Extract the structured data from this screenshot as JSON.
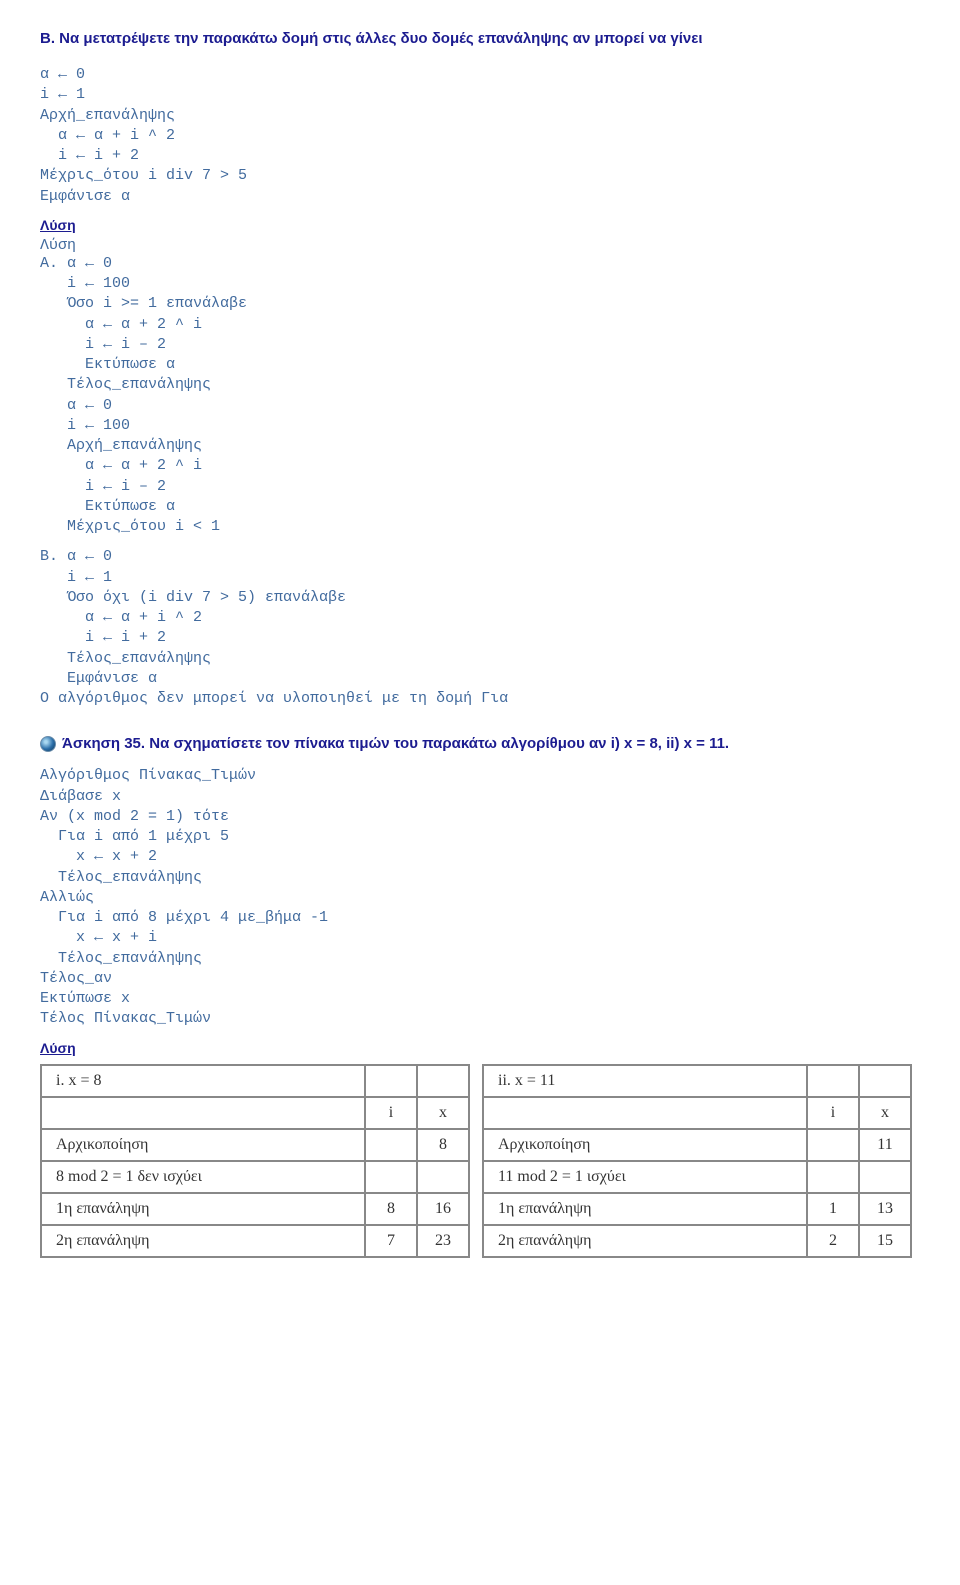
{
  "sectionB": {
    "title": "Β. Να μετατρέψετε την παρακάτω δομή στις άλλες δυο δομές επανάληψης αν μπορεί να γίνει",
    "code1": "α ← 0\ni ← 1\nΑρχή_επανάληψης\n  α ← α + i ^ 2\n  i ← i + 2\nΜέχρις_ότου i div 7 > 5\nΕμφάνισε α",
    "solution_label": "Λύση",
    "solution_inline": "Λύση",
    "codeA": "Α. α ← 0\n   i ← 100\n   Όσο i >= 1 επανάλαβε\n     α ← α + 2 ^ i\n     i ← i – 2\n     Εκτύπωσε α\n   Τέλος_επανάληψης\n   α ← 0\n   i ← 100\n   Αρχή_επανάληψης\n     α ← α + 2 ^ i\n     i ← i – 2\n     Εκτύπωσε α\n   Μέχρις_ότου i < 1",
    "codeB": "Β. α ← 0\n   i ← 1\n   Όσο όχι (i div 7 > 5) επανάλαβε\n     α ← α + i ^ 2\n     i ← i + 2\n   Τέλος_επανάληψης\n   Εμφάνισε α\nΟ αλγόριθμος δεν μπορεί να υλοποιηθεί με τη δομή Για"
  },
  "ex35": {
    "title": "Άσκηση 35. Να σχηματίσετε τον πίνακα τιμών του παρακάτω αλγορίθμου αν i) x = 8, ii) x = 11.",
    "code": "Αλγόριθμος Πίνακας_Τιμών\nΔιάβασε x\nΑν (x mod 2 = 1) τότε\n  Για i από 1 μέχρι 5\n    x ← x + 2\n  Τέλος_επανάληψης\nΑλλιώς\n  Για i από 8 μέχρι 4 με_βήμα -1\n    x ← x + i\n  Τέλος_επανάληψης\nΤέλος_αν\nΕκτύπωσε x\nΤέλος Πίνακας_Τιμών",
    "solution_label": "Λύση"
  },
  "tables": {
    "left": {
      "title": "i.   x = 8",
      "h_i": "i",
      "h_x": "x",
      "rows": [
        {
          "label": "Αρχικοποίηση",
          "i": "",
          "x": "8"
        },
        {
          "label": "8 mod 2 = 1 δεν ισχύει",
          "i": "",
          "x": ""
        },
        {
          "label": "1η επανάληψη",
          "i": "8",
          "x": "16"
        },
        {
          "label": "2η επανάληψη",
          "i": "7",
          "x": "23"
        }
      ]
    },
    "right": {
      "title": "ii.   x = 11",
      "h_i": "i",
      "h_x": "x",
      "rows": [
        {
          "label": "Αρχικοποίηση",
          "i": "",
          "x": "11"
        },
        {
          "label": "11 mod 2 = 1 ισχύει",
          "i": "",
          "x": ""
        },
        {
          "label": "1η επανάληψη",
          "i": "1",
          "x": "13"
        },
        {
          "label": "2η επανάληψη",
          "i": "2",
          "x": "15"
        }
      ]
    }
  }
}
